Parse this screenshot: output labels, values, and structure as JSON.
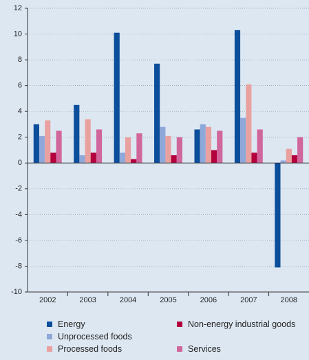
{
  "chart_data": {
    "type": "bar",
    "categories": [
      "2002",
      "2003",
      "2004",
      "2005",
      "2006",
      "2007",
      "2008"
    ],
    "series": [
      {
        "name": "Energy",
        "color": "#0b4e9b",
        "values": [
          3.0,
          4.5,
          10.1,
          7.7,
          2.6,
          10.3,
          -8.1
        ]
      },
      {
        "name": "Unprocessed foods",
        "color": "#8fa8da",
        "values": [
          2.1,
          0.6,
          0.8,
          2.8,
          3.0,
          3.5,
          0.2
        ]
      },
      {
        "name": "Processed foods",
        "color": "#e9a1a0",
        "values": [
          3.3,
          3.4,
          2.0,
          2.1,
          2.8,
          6.1,
          1.1
        ]
      },
      {
        "name": "Non-energy industrial goods",
        "color": "#b3003d",
        "values": [
          0.8,
          0.8,
          0.3,
          0.6,
          1.0,
          0.8,
          0.6
        ]
      },
      {
        "name": "Services",
        "color": "#d0669c",
        "values": [
          2.5,
          2.6,
          2.3,
          2.0,
          2.5,
          2.6,
          2.0
        ]
      }
    ],
    "ylim": [
      -10,
      12
    ],
    "yticks": [
      -10,
      -8,
      -6,
      -4,
      -2,
      0,
      2,
      4,
      6,
      8,
      10,
      12
    ],
    "grid": true
  }
}
